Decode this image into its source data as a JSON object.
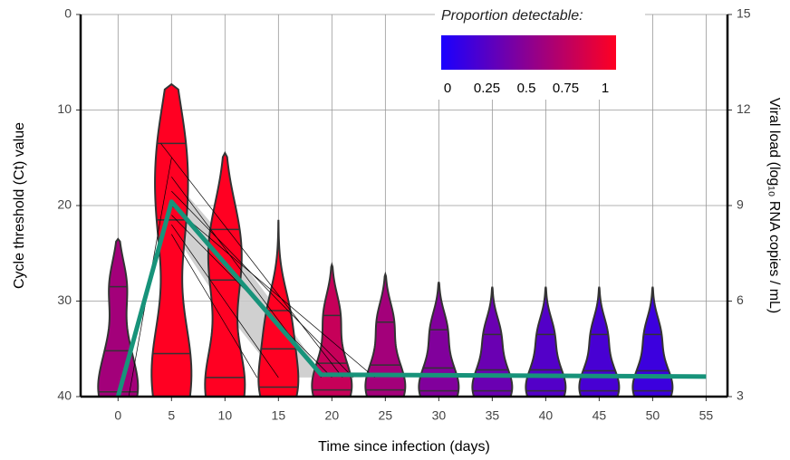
{
  "chart_data": {
    "type": "violin",
    "x_label": "Time since infection (days)",
    "y_label": "Cycle threshold (Ct) value",
    "y2_label": "Viral load (log₁₀ RNA copies / mL)",
    "xlim": [
      -3.5,
      57
    ],
    "xticks": [
      0,
      5,
      10,
      15,
      20,
      25,
      30,
      35,
      40,
      45,
      50,
      55
    ],
    "ylim": [
      40,
      0
    ],
    "yticks": [
      0,
      10,
      20,
      30,
      40
    ],
    "y2lim": [
      3,
      15
    ],
    "y2ticks": [
      3,
      6,
      9,
      12,
      15
    ],
    "grid": true,
    "violins": {
      "x": [
        0,
        5,
        10,
        15,
        20,
        25,
        30,
        35,
        40,
        45,
        50
      ],
      "min": [
        23.5,
        7.3,
        14.5,
        21.5,
        26.2,
        27.2,
        28,
        28.5,
        28.5,
        28.5,
        28.5
      ],
      "q1": [
        28.5,
        13.5,
        22.5,
        31,
        31.5,
        32.2,
        33,
        33.5,
        33.5,
        33.5,
        33.5
      ],
      "median": [
        35.2,
        21.5,
        27.8,
        35,
        36.5,
        36.7,
        37,
        37.2,
        37.2,
        37.3,
        37.3
      ],
      "q3": [
        39.5,
        35.5,
        38,
        39,
        39.3,
        39.3,
        39.4,
        39.4,
        39.4,
        39.4,
        39.4
      ],
      "max": [
        40,
        40,
        40,
        40,
        40,
        40,
        40,
        40,
        40,
        40,
        40
      ],
      "proportion": [
        0.6,
        1,
        1,
        1,
        0.75,
        0.6,
        0.45,
        0.35,
        0.25,
        0.2,
        0.15
      ]
    },
    "ribbon": {
      "color": "#c8c8c8",
      "x": [
        5,
        10,
        15,
        19,
        23
      ],
      "lower": [
        17,
        23.5,
        31,
        37.5,
        38
      ],
      "upper": [
        22.5,
        31,
        38,
        38,
        38
      ]
    },
    "trajectories": [
      {
        "x": [
          5,
          19
        ],
        "values": [
          17,
          38
        ]
      },
      {
        "x": [
          5,
          22
        ],
        "values": [
          18.5,
          38
        ]
      },
      {
        "x": [
          5,
          24
        ],
        "values": [
          20,
          38
        ]
      },
      {
        "x": [
          5,
          20
        ],
        "values": [
          21,
          38
        ]
      },
      {
        "x": [
          5,
          15
        ],
        "values": [
          22,
          38
        ]
      },
      {
        "x": [
          4,
          21
        ],
        "values": [
          13.5,
          38
        ]
      },
      {
        "x": [
          1,
          5
        ],
        "values": [
          40,
          15
        ]
      },
      {
        "x": [
          5,
          13
        ],
        "values": [
          23,
          38
        ]
      }
    ],
    "series": [
      {
        "color": "#17937a",
        "x": [
          0,
          5,
          19,
          55
        ],
        "values": [
          40,
          19.6,
          37.7,
          37.9
        ]
      }
    ],
    "colorbar": {
      "title": "Proportion detectable:",
      "colors": [
        "#1a00ff",
        "#ff0022"
      ],
      "ticks": [
        0,
        0.25,
        0.5,
        0.75,
        1
      ]
    }
  }
}
